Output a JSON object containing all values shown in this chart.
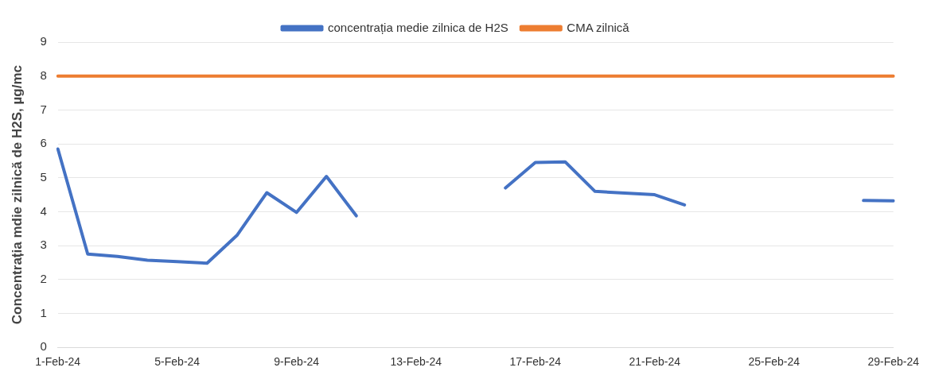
{
  "chart_data": {
    "type": "line",
    "ylabel": "Concentrația mdie zilnică de H2S, µg/mc",
    "categories": [
      "1-Feb-24",
      null,
      null,
      null,
      "5-Feb-24",
      null,
      null,
      null,
      "9-Feb-24",
      null,
      null,
      null,
      "13-Feb-24",
      null,
      null,
      null,
      "17-Feb-24",
      null,
      null,
      null,
      "21-Feb-24",
      null,
      null,
      null,
      "25-Feb-24",
      null,
      null,
      null,
      "29-Feb-24"
    ],
    "series": [
      {
        "name": "concentrația medie zilnica de H2S",
        "color": "#4472c4",
        "values": [
          5.85,
          2.75,
          2.68,
          2.57,
          2.53,
          2.48,
          3.3,
          4.56,
          3.98,
          5.04,
          3.88,
          null,
          null,
          null,
          null,
          4.7,
          5.45,
          5.47,
          4.6,
          4.55,
          4.5,
          4.2,
          null,
          null,
          null,
          null,
          null,
          4.33,
          4.32
        ]
      },
      {
        "name": "CMA zilnică",
        "color": "#ed7d31",
        "values": [
          8,
          8,
          8,
          8,
          8,
          8,
          8,
          8,
          8,
          8,
          8,
          8,
          8,
          8,
          8,
          8,
          8,
          8,
          8,
          8,
          8,
          8,
          8,
          8,
          8,
          8,
          8,
          8,
          8
        ]
      }
    ],
    "ylim": [
      0,
      9
    ],
    "yticks": [
      0,
      1,
      2,
      3,
      4,
      5,
      6,
      7,
      8,
      9
    ],
    "grid": "y",
    "legend": "top",
    "marker": "none",
    "line_style": "solid"
  }
}
